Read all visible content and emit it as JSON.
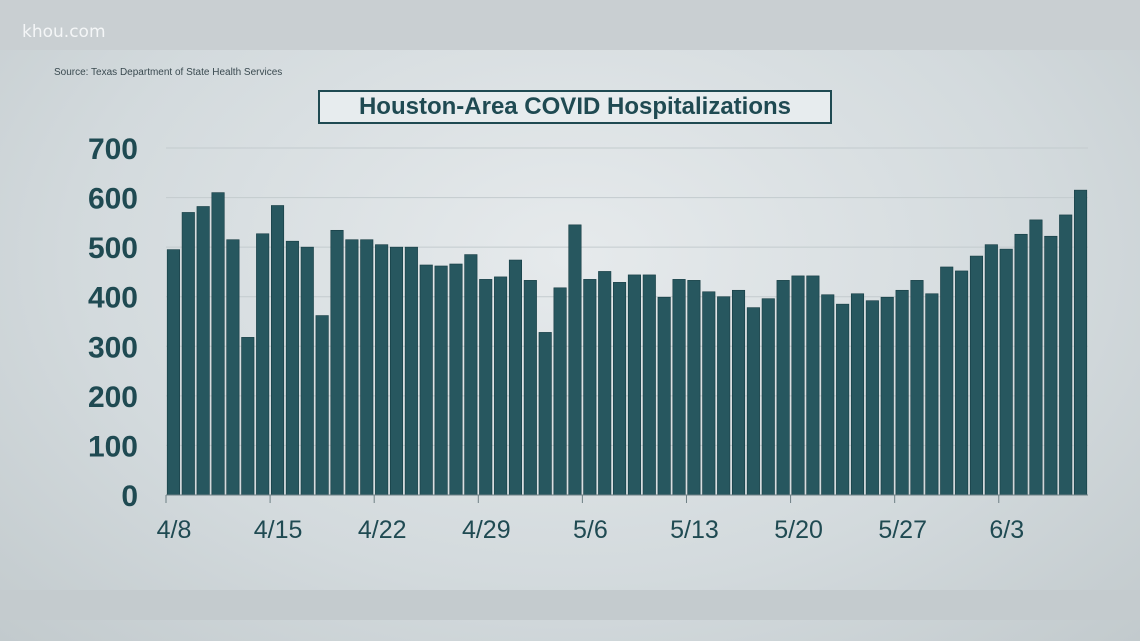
{
  "brand": "khou.com",
  "source": "Source: Texas Department of State Health Services",
  "chart_data": {
    "type": "bar",
    "title": "Houston-Area COVID Hospitalizations",
    "xlabel": "",
    "ylabel": "",
    "ylim": [
      0,
      700
    ],
    "yticks": [
      0,
      100,
      200,
      300,
      400,
      500,
      600,
      700
    ],
    "xtick_labels": [
      "4/8",
      "4/15",
      "4/22",
      "4/29",
      "5/6",
      "5/13",
      "5/20",
      "5/27",
      "6/3"
    ],
    "grid": true,
    "bar_color": "#27575f",
    "categories": [
      "4/8",
      "4/9",
      "4/10",
      "4/11",
      "4/12",
      "4/13",
      "4/14",
      "4/15",
      "4/16",
      "4/17",
      "4/18",
      "4/19",
      "4/20",
      "4/21",
      "4/22",
      "4/23",
      "4/24",
      "4/25",
      "4/26",
      "4/27",
      "4/28",
      "4/29",
      "4/30",
      "5/1",
      "5/2",
      "5/3",
      "5/4",
      "5/5",
      "5/6",
      "5/7",
      "5/8",
      "5/9",
      "5/10",
      "5/11",
      "5/12",
      "5/13",
      "5/14",
      "5/15",
      "5/16",
      "5/17",
      "5/18",
      "5/19",
      "5/20",
      "5/21",
      "5/22",
      "5/23",
      "5/24",
      "5/25",
      "5/26",
      "5/27",
      "5/28",
      "5/29",
      "5/30",
      "5/31",
      "6/1",
      "6/2",
      "6/3",
      "6/4",
      "6/5",
      "6/6",
      "6/7",
      "6/8"
    ],
    "values": [
      495,
      570,
      582,
      610,
      515,
      318,
      527,
      584,
      512,
      500,
      362,
      534,
      515,
      515,
      505,
      500,
      500,
      464,
      462,
      466,
      485,
      435,
      440,
      474,
      433,
      328,
      418,
      545,
      435,
      451,
      429,
      444,
      444,
      399,
      435,
      433,
      410,
      400,
      413,
      378,
      396,
      433,
      442,
      442,
      404,
      385,
      406,
      392,
      399,
      413,
      433,
      406,
      460,
      452,
      482,
      505,
      496,
      526,
      555,
      522,
      565,
      615
    ]
  }
}
